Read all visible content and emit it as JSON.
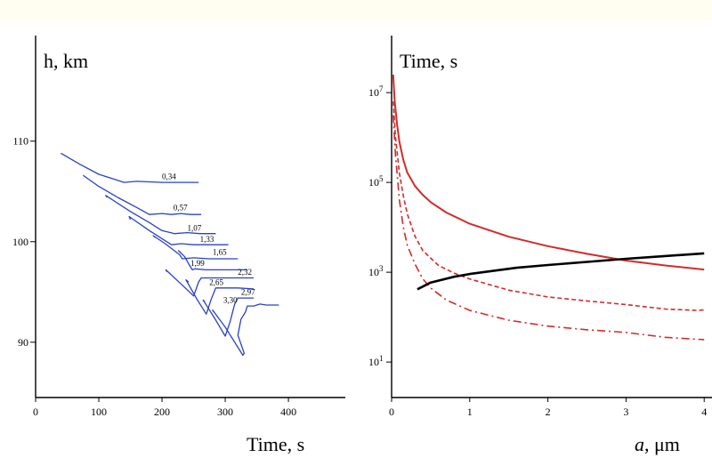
{
  "chart_data": [
    {
      "type": "line",
      "ylabel": "h, km",
      "xlabel": "Time, s",
      "xlim": [
        0,
        490
      ],
      "ylim": [
        84.5,
        120.5
      ],
      "xticks": [
        0,
        100,
        200,
        300,
        400
      ],
      "xtick_labels": [
        "0",
        "100",
        "200",
        "300",
        "400"
      ],
      "yticks": [
        90,
        100,
        110
      ],
      "ytick_labels": [
        "90",
        "100",
        "110"
      ],
      "grid": false,
      "line_color": "#2a40c8",
      "series": [
        {
          "name": "0,34",
          "points": [
            [
              40,
              108.8
            ],
            [
              70,
              107.7
            ],
            [
              100,
              106.7
            ],
            [
              120,
              106.3
            ],
            [
              140,
              105.9
            ],
            [
              160,
              106.0
            ],
            [
              200,
              105.9
            ],
            [
              258,
              105.9
            ]
          ]
        },
        {
          "name": "0,57",
          "points": [
            [
              75,
              106.6
            ],
            [
              100,
              105.5
            ],
            [
              130,
              104.4
            ],
            [
              160,
              103.4
            ],
            [
              180,
              102.7
            ],
            [
              200,
              102.8
            ],
            [
              215,
              102.7
            ],
            [
              230,
              102.8
            ],
            [
              245,
              102.7
            ],
            [
              262,
              102.7
            ]
          ]
        },
        {
          "name": "1,07",
          "points": [
            [
              113,
              104.4
            ],
            [
              111,
              104.6
            ],
            [
              150,
              103.0
            ],
            [
              180,
              101.9
            ],
            [
              200,
              101.1
            ],
            [
              220,
              100.8
            ],
            [
              240,
              100.9
            ],
            [
              260,
              100.8
            ],
            [
              285,
              100.8
            ]
          ]
        },
        {
          "name": "1,33",
          "points": [
            [
              150,
              102.2
            ],
            [
              148,
              102.5
            ],
            [
              180,
              101.1
            ],
            [
              215,
              99.7
            ],
            [
              230,
              99.8
            ],
            [
              250,
              99.7
            ],
            [
              268,
              99.7
            ],
            [
              305,
              99.7
            ]
          ]
        },
        {
          "name": "1,65",
          "points": [
            [
              190,
              100.4
            ],
            [
              186,
              100.6
            ],
            [
              205,
              99.8
            ],
            [
              228,
              98.7
            ],
            [
              232,
              98.3
            ],
            [
              250,
              98.4
            ],
            [
              275,
              98.3
            ],
            [
              300,
              98.3
            ],
            [
              320,
              98.3
            ]
          ]
        },
        {
          "name": "1,99",
          "points": [
            [
              230,
              98.9
            ],
            [
              226,
              99.1
            ],
            [
              236,
              98.5
            ],
            [
              242,
              97.8
            ],
            [
              248,
              97.2
            ],
            [
              252,
              97.3
            ],
            [
              270,
              97.2
            ],
            [
              290,
              97.2
            ],
            [
              335,
              97.2
            ]
          ]
        },
        {
          "name": "2,32",
          "points": [
            [
              208,
              97.0
            ],
            [
              206,
              97.2
            ],
            [
              230,
              95.8
            ],
            [
              250,
              94.6
            ],
            [
              258,
              96.0
            ],
            [
              262,
              96.4
            ],
            [
              280,
              96.4
            ],
            [
              300,
              96.4
            ],
            [
              330,
              96.4
            ],
            [
              345,
              96.4
            ]
          ]
        },
        {
          "name": "2,65",
          "points": [
            [
              242,
              96.0
            ],
            [
              238,
              96.2
            ],
            [
              255,
              94.3
            ],
            [
              270,
              92.8
            ],
            [
              278,
              94.3
            ],
            [
              285,
              95.4
            ],
            [
              300,
              95.4
            ],
            [
              320,
              95.4
            ],
            [
              345,
              95.3
            ]
          ]
        },
        {
          "name": "2,97",
          "points": [
            [
              268,
              94.0
            ],
            [
              265,
              94.2
            ],
            [
              285,
              92.2
            ],
            [
              300,
              90.6
            ],
            [
              308,
              92.1
            ],
            [
              315,
              93.8
            ],
            [
              320,
              94.4
            ],
            [
              335,
              94.4
            ],
            [
              345,
              94.4
            ]
          ]
        },
        {
          "name": "3,30",
          "points": [
            [
              282,
              93.0
            ],
            [
              280,
              93.2
            ],
            [
              300,
              91.5
            ],
            [
              328,
              88.7
            ],
            [
              330,
              88.9
            ],
            [
              320,
              90.7
            ],
            [
              325,
              92.3
            ],
            [
              332,
              93.0
            ],
            [
              335,
              93.6
            ],
            [
              345,
              93.6
            ],
            [
              355,
              93.8
            ],
            [
              365,
              93.7
            ],
            [
              375,
              93.7
            ],
            [
              385,
              93.7
            ]
          ]
        }
      ],
      "labels": [
        {
          "text": "0,34",
          "x": 200,
          "y": 106.2
        },
        {
          "text": "0,57",
          "x": 218,
          "y": 103.1
        },
        {
          "text": "1,07",
          "x": 240,
          "y": 101.1
        },
        {
          "text": "1,33",
          "x": 260,
          "y": 100.0
        },
        {
          "text": "1,65",
          "x": 280,
          "y": 98.7
        },
        {
          "text": "1,99",
          "x": 245,
          "y": 97.6
        },
        {
          "text": "2,32",
          "x": 320,
          "y": 96.7
        },
        {
          "text": "2,65",
          "x": 275,
          "y": 95.7
        },
        {
          "text": "2,97",
          "x": 325,
          "y": 94.7
        },
        {
          "text": "3,30",
          "x": 297,
          "y": 93.9
        }
      ]
    },
    {
      "type": "line",
      "ylabel": "Time, s",
      "xlabel_italic": "a",
      "xlabel_rest": ", μm",
      "xlim": [
        0,
        4.1
      ],
      "ylim": [
        0.21,
        8.27
      ],
      "log_scale_y": true,
      "xticks": [
        0,
        1,
        2,
        3,
        4
      ],
      "xtick_labels": [
        "0",
        "1",
        "2",
        "3",
        "4"
      ],
      "yticks_log": [
        1,
        3,
        5,
        7
      ],
      "ytick_bases": [
        "10",
        "10",
        "10",
        "10"
      ],
      "ytick_exps": [
        "1",
        "3",
        "5",
        "7"
      ],
      "grid": false,
      "series": [
        {
          "style": "solid",
          "color": "#d42a2a",
          "points": [
            [
              0.02,
              7.4
            ],
            [
              0.04,
              6.8
            ],
            [
              0.07,
              6.3
            ],
            [
              0.1,
              5.9
            ],
            [
              0.15,
              5.5
            ],
            [
              0.2,
              5.22
            ],
            [
              0.3,
              4.92
            ],
            [
              0.4,
              4.72
            ],
            [
              0.5,
              4.56
            ],
            [
              0.7,
              4.33
            ],
            [
              1.0,
              4.08
            ],
            [
              1.5,
              3.79
            ],
            [
              2.0,
              3.58
            ],
            [
              2.5,
              3.41
            ],
            [
              3.0,
              3.26
            ],
            [
              3.5,
              3.15
            ],
            [
              4.0,
              3.06
            ]
          ]
        },
        {
          "style": "dashed",
          "color": "#d42a2a",
          "points": [
            [
              0.02,
              6.8
            ],
            [
              0.05,
              6.0
            ],
            [
              0.1,
              5.2
            ],
            [
              0.15,
              4.7
            ],
            [
              0.2,
              4.3
            ],
            [
              0.3,
              3.8
            ],
            [
              0.4,
              3.48
            ],
            [
              0.6,
              3.15
            ],
            [
              0.8,
              2.98
            ],
            [
              1.0,
              2.85
            ],
            [
              1.5,
              2.6
            ],
            [
              2.0,
              2.45
            ],
            [
              2.5,
              2.36
            ],
            [
              3.0,
              2.28
            ],
            [
              3.5,
              2.18
            ],
            [
              3.9,
              2.15
            ],
            [
              4.0,
              2.16
            ]
          ]
        },
        {
          "style": "dashdot",
          "color": "#d42a2a",
          "points": [
            [
              0.02,
              6.5
            ],
            [
              0.05,
              5.6
            ],
            [
              0.1,
              4.6
            ],
            [
              0.15,
              4.0
            ],
            [
              0.2,
              3.6
            ],
            [
              0.3,
              3.18
            ],
            [
              0.4,
              2.85
            ],
            [
              0.5,
              2.65
            ],
            [
              0.7,
              2.38
            ],
            [
              1.0,
              2.15
            ],
            [
              1.5,
              1.93
            ],
            [
              2.0,
              1.8
            ],
            [
              2.5,
              1.72
            ],
            [
              3.0,
              1.66
            ],
            [
              3.5,
              1.55
            ],
            [
              4.0,
              1.5
            ]
          ]
        },
        {
          "style": "solid",
          "color": "#000000",
          "points": [
            [
              0.33,
              2.62
            ],
            [
              0.5,
              2.77
            ],
            [
              0.8,
              2.9
            ],
            [
              1.0,
              2.96
            ],
            [
              1.3,
              3.03
            ],
            [
              1.6,
              3.1
            ],
            [
              2.0,
              3.16
            ],
            [
              2.5,
              3.23
            ],
            [
              3.0,
              3.3
            ],
            [
              3.5,
              3.36
            ],
            [
              4.0,
              3.42
            ]
          ]
        }
      ]
    }
  ]
}
